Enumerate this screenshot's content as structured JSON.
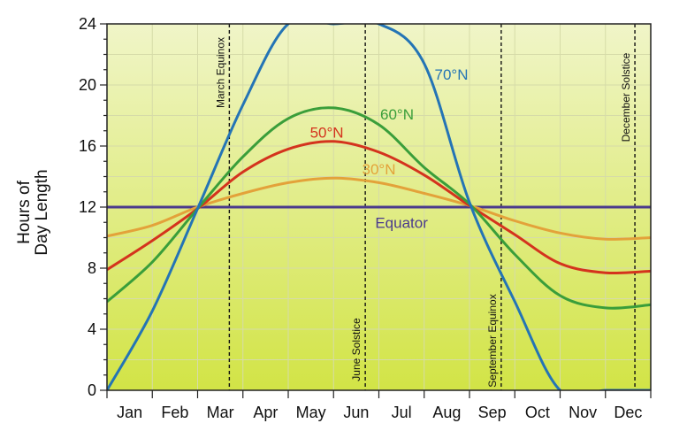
{
  "chart_data": {
    "type": "line",
    "title": "",
    "xlabel": "",
    "ylabel": [
      "Hours of",
      "Day Length"
    ],
    "ylim": [
      0,
      24
    ],
    "yticks": [
      0,
      4,
      8,
      12,
      16,
      20,
      24
    ],
    "months": [
      "Jan",
      "Feb",
      "Mar",
      "Apr",
      "May",
      "Jun",
      "Jul",
      "Aug",
      "Sep",
      "Oct",
      "Nov",
      "Dec"
    ],
    "grid": true,
    "x": [
      0,
      1,
      2,
      3,
      4,
      5,
      6,
      7,
      8,
      9,
      10,
      11,
      12
    ],
    "series": [
      {
        "name": "70°N",
        "color": "#2474b5",
        "values": [
          0,
          5.2,
          11.9,
          18.7,
          24,
          24,
          24,
          21.4,
          12.3,
          5.8,
          0,
          0,
          0
        ]
      },
      {
        "name": "60°N",
        "color": "#3a9e3a",
        "values": [
          5.8,
          8.4,
          11.9,
          15.3,
          17.8,
          18.5,
          17.4,
          14.6,
          12.2,
          8.9,
          6.2,
          5.4,
          5.6
        ]
      },
      {
        "name": "50°N",
        "color": "#d4331d",
        "values": [
          7.9,
          9.8,
          11.9,
          14.3,
          15.8,
          16.3,
          15.6,
          14.1,
          12.1,
          10.2,
          8.3,
          7.7,
          7.8
        ]
      },
      {
        "name": "30°N",
        "color": "#e3a23a",
        "values": [
          10.1,
          10.8,
          12.0,
          12.9,
          13.6,
          13.9,
          13.6,
          12.9,
          12.1,
          11.1,
          10.3,
          9.9,
          10.0
        ]
      },
      {
        "name": "Equator",
        "color": "#4a3a8c",
        "values": [
          12,
          12,
          12,
          12,
          12,
          12,
          12,
          12,
          12,
          12,
          12,
          12,
          12
        ]
      }
    ],
    "events": [
      {
        "label": "March Equinox",
        "x": 2.7
      },
      {
        "label": "June Solstice",
        "x": 5.7
      },
      {
        "label": "September Equinox",
        "x": 8.7
      },
      {
        "label": "December Solstice",
        "x": 11.65
      }
    ],
    "colors": {
      "bg_top": "#f0f5c8",
      "bg_bottom": "#d2e446",
      "grid": "#d6dba8"
    }
  }
}
